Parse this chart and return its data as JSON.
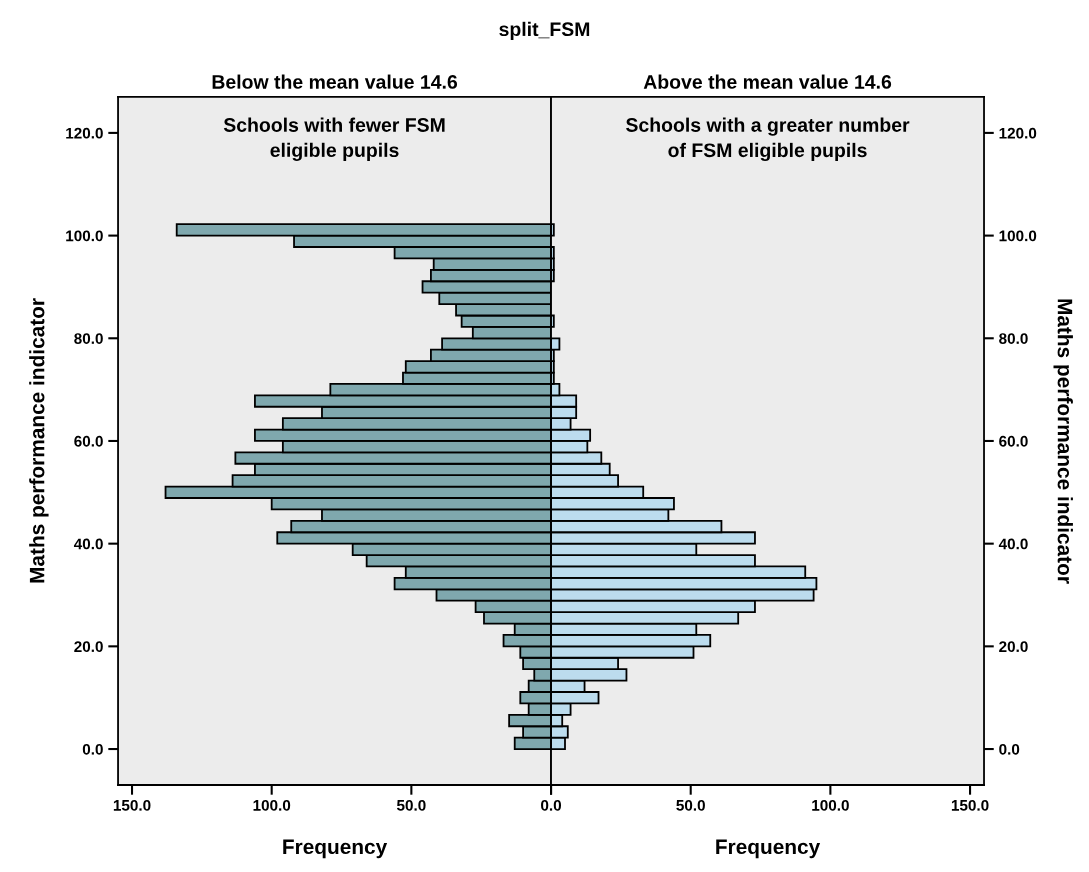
{
  "chart_data": [
    {
      "type": "histogram",
      "orientation": "horizontal",
      "title": "split_FSM",
      "subtitle": "Below the mean value 14.6",
      "xlabel": "Frequency",
      "ylabel": "Maths performance indicator",
      "annotations": [
        "Schools with fewer FSM\neligible pupils"
      ],
      "bins": [
        0,
        2.22,
        4.44,
        6.67,
        8.89,
        11.11,
        13.33,
        15.56,
        17.78,
        20,
        22.22,
        24.44,
        26.67,
        28.89,
        31.11,
        33.33,
        35.56,
        37.78,
        40,
        42.22,
        44.44,
        46.67,
        48.89,
        51.11,
        53.33,
        55.56,
        57.78,
        60,
        62.22,
        64.44,
        66.67,
        68.89,
        71.11,
        73.33,
        75.56,
        77.78,
        80,
        82.22,
        84.44,
        86.67,
        88.89,
        91.11,
        93.33,
        95.56,
        97.78,
        100,
        102.22
      ],
      "series": [
        {
          "color": "#7fa8ae",
          "values": [
            13,
            10,
            15,
            8,
            11,
            8,
            6,
            10,
            11,
            17,
            13,
            24,
            27,
            41,
            56,
            52,
            66,
            71,
            98,
            93,
            82,
            100,
            138,
            114,
            106,
            113,
            96,
            106,
            96,
            82,
            106,
            79,
            53,
            52,
            43,
            39,
            28,
            32,
            34,
            40,
            46,
            43,
            42,
            56,
            92,
            134
          ]
        }
      ],
      "xlim": [
        155,
        0
      ],
      "xticks": [
        {
          "value": 150,
          "label": "150.0"
        },
        {
          "value": 100,
          "label": "100.0"
        },
        {
          "value": 50,
          "label": "50.0"
        },
        {
          "value": 0,
          "label": null
        }
      ],
      "ylim": [
        -7,
        127
      ],
      "yticks": [
        {
          "value": 0,
          "label": "0.0"
        },
        {
          "value": 20,
          "label": "20.0"
        },
        {
          "value": 40,
          "label": "40.0"
        },
        {
          "value": 60,
          "label": "60.0"
        },
        {
          "value": 80,
          "label": "80.0"
        },
        {
          "value": 100,
          "label": "100.0"
        },
        {
          "value": 120,
          "label": "120.0"
        }
      ],
      "grid": false
    },
    {
      "type": "histogram",
      "orientation": "horizontal",
      "subtitle": "Above the mean value 14.6",
      "xlabel": "Frequency",
      "ylabel": "Maths performance indicator",
      "annotations": [
        "Schools with a greater number\nof FSM eligible pupils"
      ],
      "bins": [
        0,
        2.22,
        4.44,
        6.67,
        8.89,
        11.11,
        13.33,
        15.56,
        17.78,
        20,
        22.22,
        24.44,
        26.67,
        28.89,
        31.11,
        33.33,
        35.56,
        37.78,
        40,
        42.22,
        44.44,
        46.67,
        48.89,
        51.11,
        53.33,
        55.56,
        57.78,
        60,
        62.22,
        64.44,
        66.67,
        68.89,
        71.11,
        73.33,
        75.56,
        77.78,
        80,
        82.22,
        84.44,
        86.67,
        88.89,
        91.11,
        93.33,
        95.56,
        97.78,
        100,
        102.22
      ],
      "series": [
        {
          "color": "#bcdcee",
          "values": [
            5,
            6,
            4,
            7,
            17,
            12,
            27,
            24,
            51,
            57,
            52,
            67,
            73,
            94,
            95,
            91,
            73,
            52,
            73,
            61,
            42,
            44,
            33,
            24,
            21,
            18,
            13,
            14,
            7,
            9,
            9,
            3,
            1,
            1,
            1,
            3,
            0,
            1,
            0,
            0,
            0,
            1,
            1,
            1,
            0,
            1
          ]
        }
      ],
      "xlim": [
        0,
        155
      ],
      "xticks": [
        {
          "value": 0,
          "label": "0.0"
        },
        {
          "value": 50,
          "label": "50.0"
        },
        {
          "value": 100,
          "label": "100.0"
        },
        {
          "value": 150,
          "label": "150.0"
        }
      ],
      "ylim": [
        -7,
        127
      ],
      "yticks": [
        {
          "value": 0,
          "label": "0.0"
        },
        {
          "value": 20,
          "label": "20.0"
        },
        {
          "value": 40,
          "label": "40.0"
        },
        {
          "value": 60,
          "label": "60.0"
        },
        {
          "value": 80,
          "label": "80.0"
        },
        {
          "value": 100,
          "label": "100.0"
        },
        {
          "value": 120,
          "label": "120.0"
        }
      ],
      "grid": false
    }
  ]
}
